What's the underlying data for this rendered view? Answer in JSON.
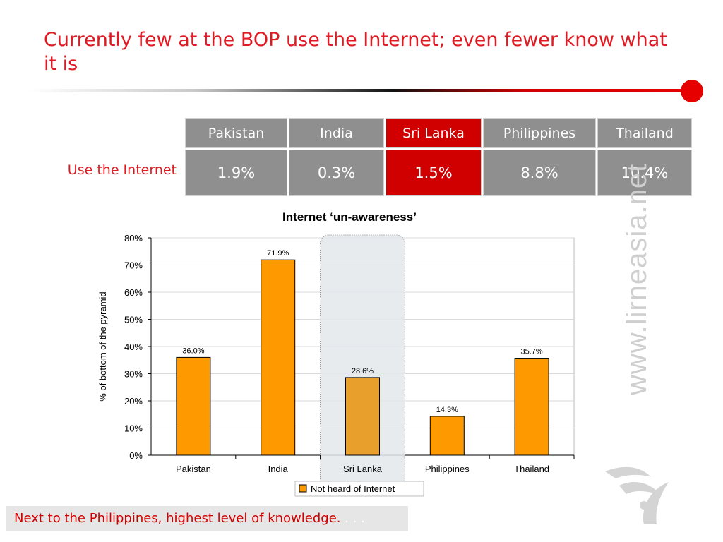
{
  "slide": {
    "title": "Currently few at the BOP use the Internet; even fewer know what it is",
    "footer_text": "Next to the Philippines, highest level of knowledge.",
    "footer_dots": ". . .",
    "watermark": "www.lirneasia.net"
  },
  "table": {
    "row_label": "Use the Internet",
    "columns": [
      "Pakistan",
      "India",
      "Sri Lanka",
      "Philippines",
      "Thailand"
    ],
    "values": [
      "1.9%",
      "0.3%",
      "1.5%",
      "8.8%",
      "10.4%"
    ],
    "highlight": "Sri Lanka"
  },
  "colors": {
    "accent": "#e01a22",
    "bar": "#ff9900",
    "bar_highlight": "#e99f2c",
    "cell": "#8f8f8f",
    "cell_highlight": "#d00000"
  },
  "chart_data": {
    "type": "bar",
    "title": "Internet ‘un-awareness’",
    "xlabel": "",
    "ylabel": "% of bottom of the pyramid",
    "categories": [
      "Pakistan",
      "India",
      "Sri Lanka",
      "Philippines",
      "Thailand"
    ],
    "series": [
      {
        "name": "Not heard of Internet",
        "values": [
          36.0,
          71.9,
          28.6,
          14.3,
          35.7
        ]
      }
    ],
    "data_labels": [
      "36.0%",
      "71.9%",
      "28.6%",
      "14.3%",
      "35.7%"
    ],
    "ylim": [
      0,
      80
    ],
    "yticks": [
      "0%",
      "10%",
      "20%",
      "30%",
      "40%",
      "50%",
      "60%",
      "70%",
      "80%"
    ],
    "highlight_category": "Sri Lanka",
    "legend_position": "bottom",
    "grid": true
  }
}
